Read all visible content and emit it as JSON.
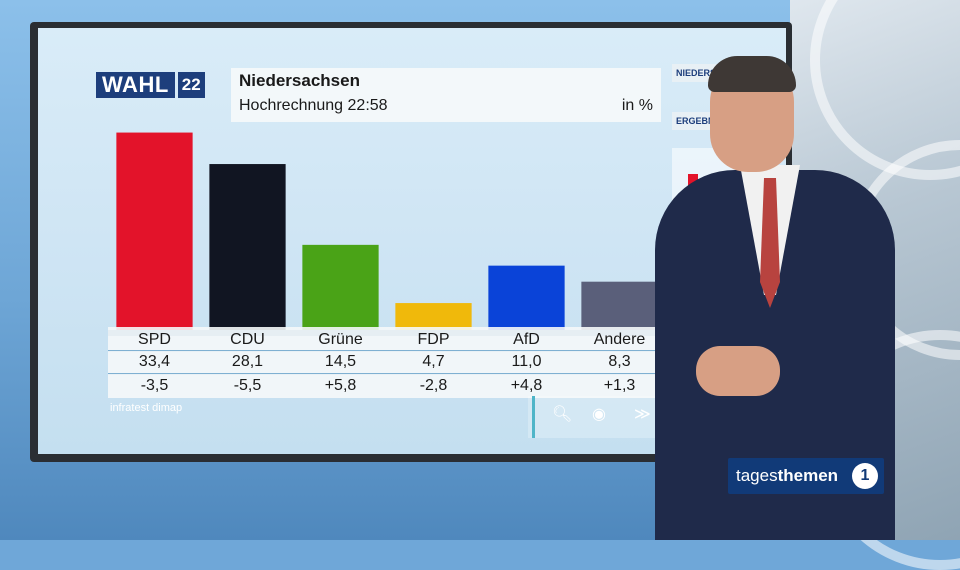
{
  "graphic": {
    "logo_text": "WAHL",
    "logo_number": "22",
    "title": "Niedersachsen",
    "subtitle": "Hochrechnung 22:58",
    "unit": "in %",
    "source": "infratest dimap"
  },
  "chart_data": {
    "type": "bar",
    "title": "Niedersachsen",
    "subtitle": "Hochrechnung 22:58",
    "ylabel": "in %",
    "categories": [
      "SPD",
      "CDU",
      "Grüne",
      "FDP",
      "AfD",
      "Andere"
    ],
    "values": [
      33.4,
      28.1,
      14.5,
      4.7,
      11.0,
      8.3
    ],
    "value_labels": [
      "33,4",
      "28,1",
      "14,5",
      "4,7",
      "11,0",
      "8,3"
    ],
    "changes": [
      "-3,5",
      "-5,5",
      "+5,8",
      "-2,8",
      "+4,8",
      "+1,3"
    ],
    "colors": [
      "#e3132a",
      "#111522",
      "#4aa317",
      "#f0b90b",
      "#0a43d8",
      "#5a5f7a"
    ],
    "ylim": [
      0,
      34
    ],
    "grid": false
  },
  "side_panel": {
    "label_top": "NIEDERSACHSEN",
    "label_mid": "ERGEBNIS"
  },
  "nav": {
    "search_icon": "search-icon",
    "record_icon": "target-icon",
    "forward_icon": "fast-forward-icon",
    "home_icon": "home-icon"
  },
  "broadcast_logo": {
    "text_light": "tages",
    "text_bold": "themen",
    "badge": "1"
  }
}
